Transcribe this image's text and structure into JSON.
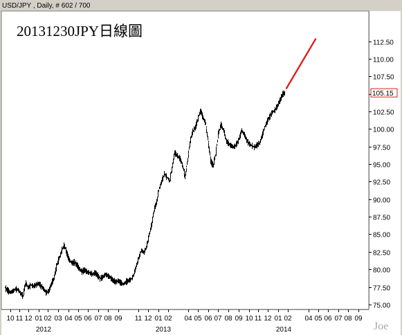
{
  "header": "USD/JPY  , Daily, # 602 / 700",
  "title": "20131230JPY日線圖",
  "watermark": "Joe",
  "chart_data": {
    "type": "line",
    "style": "daily price bars",
    "y_ticks": [
      75.0,
      77.5,
      80.0,
      82.5,
      85.0,
      87.5,
      90.0,
      92.5,
      95.0,
      97.5,
      100.0,
      102.5,
      105.0,
      107.5,
      110.0,
      112.5
    ],
    "y_tick_labels": [
      "75.00",
      "77.50",
      "80.00",
      "82.50",
      "85.00",
      "87.50",
      "90.00",
      "92.50",
      "95.00",
      "97.50",
      "100.00",
      "102.50",
      "105.00",
      "107.50",
      "110.00",
      "112.50"
    ],
    "ylim": [
      74.3,
      116.8
    ],
    "current_price": 105.15,
    "current_price_label": "105.15",
    "x_month_labels": [
      "10",
      "11",
      "12",
      "01",
      "02",
      "03",
      "04",
      "05",
      "06",
      "07",
      "08",
      "09",
      "11",
      "12",
      "01",
      "02",
      "04",
      "05",
      "06",
      "07",
      "08",
      "09",
      "10",
      "11",
      "12",
      "01",
      "02",
      "04",
      "05",
      "06",
      "07",
      "08",
      "09"
    ],
    "x_year_labels": [
      "2012",
      "2013",
      "2014"
    ],
    "series": [
      {
        "values": [
          77.4,
          77.0,
          76.7,
          76.9,
          77.2,
          77.1,
          76.6,
          76.2,
          78.1,
          77.4,
          77.8,
          77.6,
          77.8,
          78.0,
          77.6,
          77.2,
          76.7,
          76.9,
          77.9,
          78.7,
          80.5,
          81.6,
          82.6,
          83.5,
          82.3,
          81.3,
          80.9,
          81.0,
          80.6,
          80.0,
          79.7,
          79.9,
          79.6,
          79.5,
          79.3,
          79.5,
          79.1,
          78.7,
          78.9,
          79.3,
          79.1,
          78.8,
          78.4,
          78.2,
          78.4,
          78.1,
          77.9,
          78.2,
          78.4,
          78.6,
          79.2,
          80.4,
          81.6,
          82.7,
          82.4,
          83.2,
          84.9,
          86.4,
          88.6,
          89.6,
          91.6,
          92.6,
          93.6,
          93.1,
          92.6,
          94.6,
          96.6,
          96.2,
          95.8,
          94.9,
          93.2,
          95.6,
          98.4,
          99.6,
          100.2,
          101.4,
          102.7,
          101.6,
          100.8,
          98.2,
          95.4,
          94.8,
          96.6,
          99.4,
          100.6,
          99.8,
          98.3,
          97.9,
          97.6,
          97.4,
          97.8,
          98.6,
          99.8,
          99.2,
          98.4,
          97.9,
          97.6,
          97.4,
          97.7,
          98.0,
          99.1,
          100.3,
          101.1,
          101.8,
          102.4,
          102.7,
          103.3,
          104.2,
          105.0,
          105.15
        ]
      }
    ],
    "projection": {
      "start": 105.8,
      "end": 112.8,
      "color": "#e21a1a"
    }
  }
}
